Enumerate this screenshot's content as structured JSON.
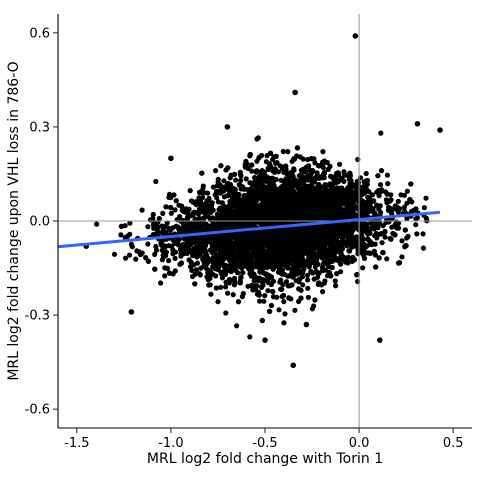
{
  "chart_data": {
    "type": "scatter",
    "title": "",
    "xlabel": "MRL log2 fold change with Torin 1",
    "ylabel": "MRL log2 fold change upon VHL loss in 786-O",
    "xlim": [
      -1.6,
      0.6
    ],
    "ylim": [
      -0.66,
      0.66
    ],
    "x_ticks": [
      -1.5,
      -1.0,
      -0.5,
      0.0,
      0.5
    ],
    "x_tick_labels": [
      "-1.5",
      "-1.0",
      "-0.5",
      "0.0",
      "0.5"
    ],
    "y_ticks": [
      0.6,
      0.3,
      0.0,
      -0.3,
      -0.6
    ],
    "y_tick_labels": [
      "0.6",
      "0.3",
      "0.0",
      "-0.3",
      "-0.6"
    ],
    "reference_lines": {
      "x": 0.0,
      "y": 0.0
    },
    "grid": false,
    "point_color": "#000000",
    "fit_line": {
      "x": [
        -1.6,
        0.43
      ],
      "y": [
        -0.082,
        0.028
      ],
      "color": "#3366ff"
    },
    "cloud_description": {
      "approx_points": 5000,
      "x_center": -0.42,
      "x_sd": 0.28,
      "y_center": -0.03,
      "y_sd": 0.07
    },
    "notable_points": [
      {
        "x": -0.02,
        "y": 0.59
      },
      {
        "x": -0.35,
        "y": -0.46
      },
      {
        "x": 0.11,
        "y": -0.38
      },
      {
        "x": -0.5,
        "y": -0.38
      },
      {
        "x": -1.45,
        "y": -0.08
      },
      {
        "x": 0.43,
        "y": 0.29
      },
      {
        "x": -1.21,
        "y": -0.29
      },
      {
        "x": -0.34,
        "y": 0.41
      },
      {
        "x": -0.7,
        "y": 0.3
      },
      {
        "x": -1.0,
        "y": 0.2
      },
      {
        "x": 0.31,
        "y": 0.31
      },
      {
        "x": -0.28,
        "y": -0.33
      }
    ]
  }
}
